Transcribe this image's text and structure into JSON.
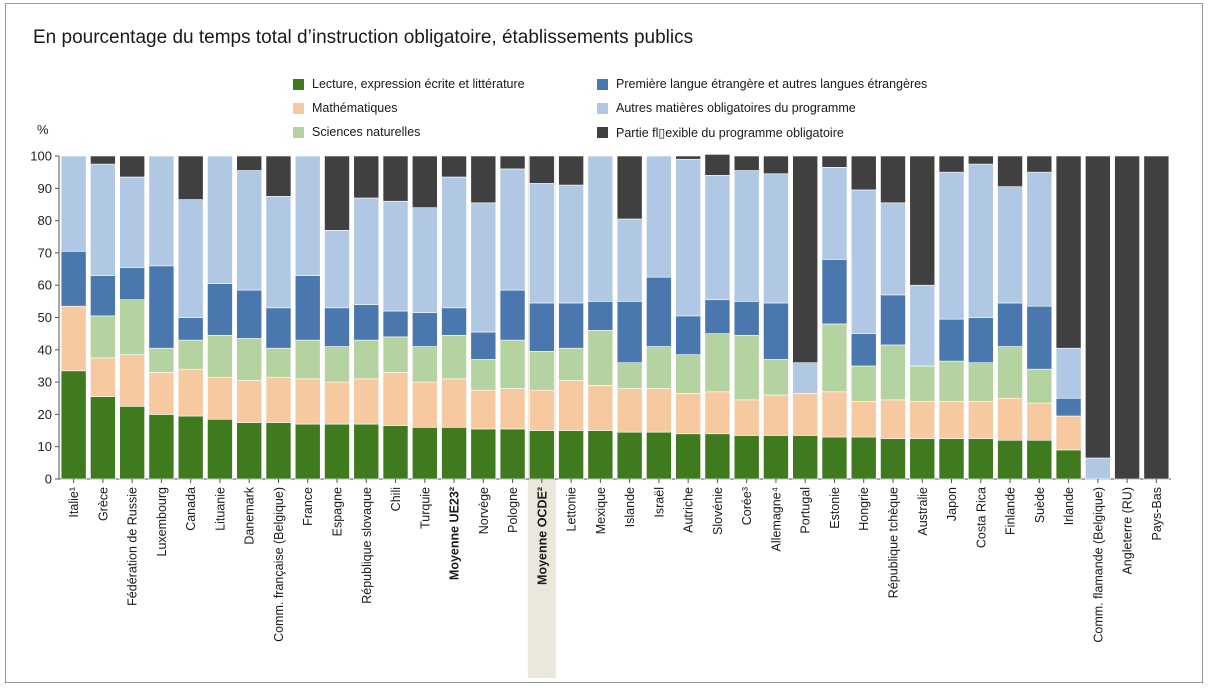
{
  "title": "En pourcentage du temps total d’instruction obligatoire, établissements publics",
  "legend": [
    {
      "label": "Lecture, expression écrite et littérature",
      "color": "#3f7a1f"
    },
    {
      "label": "Mathématiques",
      "color": "#f6c9a1"
    },
    {
      "label": "Sciences naturelles",
      "color": "#b5d3a0"
    },
    {
      "label": "Première langue étrangère et autres langues étrangères",
      "color": "#4a77ad"
    },
    {
      "label": "Autres matières obligatoires du programme",
      "color": "#b1c8e5"
    },
    {
      "label": "Partie fl▯exible du programme obligatoire",
      "color": "#404040"
    }
  ],
  "chart_data": {
    "type": "bar",
    "stacked": true,
    "ylabel": "%",
    "ylim": [
      0,
      100
    ],
    "yticks": [
      0,
      10,
      20,
      30,
      40,
      50,
      60,
      70,
      80,
      90,
      100
    ],
    "grid": false,
    "categories": [
      "Italie¹",
      "Grèce",
      "Fédération de Russie",
      "Luxembourg",
      "Canada",
      "Lituanie",
      "Danemark",
      "Comm. française (Belgique)",
      "France",
      "Espagne",
      "République slovaque",
      "Chili",
      "Turquie",
      "Moyenne UE23²",
      "Norvège",
      "Pologne",
      "Moyenne OCDE²",
      "Lettonie",
      "Mexique",
      "Islande",
      "Israël",
      "Autriche",
      "Slovénie",
      "Corée³",
      "Allemagne⁴",
      "Portugal",
      "Estonie",
      "Hongrie",
      "République tchèque",
      "Australie",
      "Japon",
      "Costa Rica",
      "Finlande",
      "Suède",
      "Irlande",
      "Comm. flamande (Belgique)",
      "Angleterre (RU)",
      "Pays-Bas"
    ],
    "bold_categories": [
      "Moyenne UE23²",
      "Moyenne OCDE²"
    ],
    "highlighted_category": "Moyenne OCDE²",
    "series": [
      {
        "name": "Lecture, expression écrite et littérature",
        "values": [
          33.5,
          25.5,
          22.5,
          20,
          19.5,
          18.5,
          17.5,
          17.5,
          17,
          17,
          17,
          16.5,
          16,
          16,
          15.5,
          15.5,
          15,
          15,
          15,
          14.5,
          14.5,
          14,
          14,
          13.5,
          13.5,
          13.5,
          13,
          13,
          12.5,
          12.5,
          12.5,
          12.5,
          12,
          12,
          9,
          0,
          0,
          0
        ]
      },
      {
        "name": "Mathématiques",
        "values": [
          20,
          12,
          16,
          13,
          14.5,
          13,
          13,
          14,
          14,
          13,
          14,
          16.5,
          14,
          15,
          12,
          12.5,
          12.5,
          15.5,
          14,
          13.5,
          13.5,
          12.5,
          13,
          11,
          12.5,
          13,
          14,
          11,
          12,
          11.5,
          11.5,
          11.5,
          13,
          11.5,
          10.5,
          0,
          0,
          0
        ]
      },
      {
        "name": "Sciences naturelles",
        "values": [
          0,
          13,
          17,
          7.5,
          9,
          13,
          13,
          9,
          12,
          11,
          12,
          11,
          11,
          13.5,
          9.5,
          15,
          12,
          10,
          17,
          8,
          13,
          12,
          18,
          20,
          11,
          0,
          21,
          11,
          17,
          11,
          12.5,
          12,
          16,
          10.5,
          0,
          0,
          0,
          0
        ]
      },
      {
        "name": "Première langue étrangère et autres langues étrangères",
        "values": [
          17,
          12.5,
          10,
          25.5,
          7,
          16,
          15,
          12.5,
          20,
          12,
          11,
          8,
          10.5,
          8.5,
          8.5,
          15.5,
          15,
          14,
          9,
          19,
          21.5,
          12,
          10.5,
          10.5,
          17.5,
          0,
          20,
          10,
          15.5,
          0,
          13,
          14,
          13.5,
          19.5,
          5.5,
          0,
          0,
          0
        ]
      },
      {
        "name": "Autres matières obligatoires du programme",
        "values": [
          29.5,
          34.5,
          28,
          34,
          36.5,
          39.5,
          37,
          34.5,
          37,
          24,
          33,
          34,
          32.5,
          40.5,
          40,
          37.5,
          37,
          36.5,
          45,
          25.5,
          37.5,
          48.5,
          38.5,
          40.5,
          40,
          9.5,
          28.5,
          44.5,
          28.5,
          25,
          45.5,
          47.5,
          36,
          41.5,
          15.5,
          6.5,
          0,
          0
        ]
      },
      {
        "name": "Partie fl▯exible du programme obligatoire",
        "values": [
          0,
          2.5,
          6.5,
          0,
          13.5,
          0,
          4.5,
          12.5,
          0,
          23,
          13,
          14,
          16,
          6.5,
          14.5,
          4,
          8.5,
          9,
          0,
          19.5,
          0,
          1,
          6.5,
          4.5,
          5.5,
          64,
          3.5,
          10.5,
          14.5,
          40,
          5,
          2.5,
          9.5,
          5,
          59.5,
          93.5,
          100,
          100
        ]
      }
    ]
  }
}
